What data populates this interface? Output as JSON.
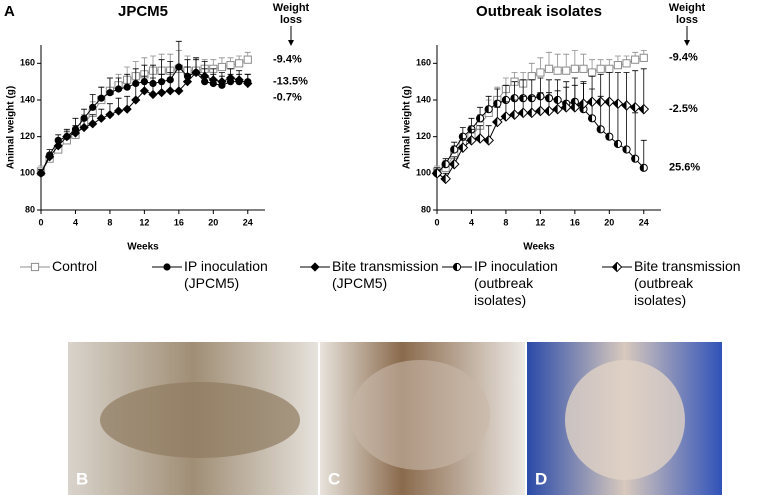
{
  "panel_label": "A",
  "chart_data": [
    {
      "type": "line",
      "title": "JPCM5",
      "xlabel": "Weeks",
      "ylabel": "Animal weight (g)",
      "weight_loss_header": "Weight loss",
      "x": [
        0,
        1,
        2,
        3,
        4,
        5,
        6,
        7,
        8,
        9,
        10,
        11,
        12,
        13,
        14,
        15,
        16,
        17,
        18,
        19,
        20,
        21,
        22,
        23,
        24
      ],
      "xlim": [
        0,
        26
      ],
      "xticks": [
        0,
        4,
        8,
        12,
        16,
        20,
        24
      ],
      "ylim": [
        80,
        170
      ],
      "yticks": [
        80,
        100,
        120,
        140,
        160
      ],
      "series": [
        {
          "name": "Control",
          "color": "#8c8c8c",
          "marker": "square-open",
          "weight_loss": "-9.4%",
          "values": [
            101,
            108,
            113,
            118,
            121,
            127,
            133,
            140,
            145,
            148,
            151,
            153,
            154,
            156,
            156,
            156,
            157,
            156,
            156,
            157,
            157,
            158,
            159,
            160,
            162
          ],
          "errors": [
            3,
            3,
            4,
            4,
            5,
            5,
            6,
            7,
            7,
            6,
            7,
            8,
            9,
            8,
            9,
            9,
            10,
            8,
            7,
            5,
            5,
            5,
            4,
            4,
            4
          ]
        },
        {
          "name": "IP inoculation (JPCM5)",
          "color": "#000000",
          "marker": "circle",
          "weight_loss": "-13.5%",
          "values": [
            100,
            110,
            118,
            120,
            124,
            130,
            136,
            141,
            144,
            146,
            147,
            149,
            150,
            149,
            150,
            151,
            158,
            153,
            155,
            150,
            149,
            148,
            150,
            150,
            150
          ],
          "errors": [
            2,
            3,
            3,
            4,
            6,
            5,
            7,
            6,
            8,
            6,
            7,
            8,
            9,
            10,
            12,
            10,
            14,
            9,
            8,
            7,
            5,
            5,
            4,
            4,
            4
          ]
        },
        {
          "name": "Bite transmission (JPCM5)",
          "color": "#000000",
          "marker": "diamond",
          "weight_loss": "-0.7%",
          "values": [
            100,
            109,
            115,
            120,
            122,
            125,
            127,
            130,
            132,
            134,
            135,
            140,
            145,
            143,
            144,
            145,
            145,
            150,
            155,
            153,
            151,
            150,
            152,
            151,
            149
          ],
          "errors": [
            2,
            2,
            3,
            3,
            4,
            5,
            5,
            5,
            6,
            7,
            7,
            8,
            8,
            9,
            10,
            10,
            12,
            8,
            7,
            8,
            6,
            5,
            5,
            5,
            5
          ]
        }
      ]
    },
    {
      "type": "line",
      "title": "Outbreak isolates",
      "xlabel": "Weeks",
      "ylabel": "Animal weight (g)",
      "weight_loss_header": "Weight loss",
      "x": [
        0,
        1,
        2,
        3,
        4,
        5,
        6,
        7,
        8,
        9,
        10,
        11,
        12,
        13,
        14,
        15,
        16,
        17,
        18,
        19,
        20,
        21,
        22,
        23,
        24
      ],
      "xlim": [
        0,
        26
      ],
      "xticks": [
        0,
        4,
        8,
        12,
        16,
        20,
        24
      ],
      "ylim": [
        80,
        170
      ],
      "yticks": [
        80,
        100,
        120,
        140,
        160
      ],
      "series": [
        {
          "name": "Control",
          "color": "#8c8c8c",
          "marker": "square-open",
          "weight_loss": "-9.4%",
          "values": [
            101,
            103,
            110,
            116,
            120,
            126,
            133,
            140,
            146,
            150,
            149,
            153,
            155,
            157,
            156,
            156,
            157,
            157,
            155,
            157,
            157,
            159,
            160,
            162,
            163
          ],
          "errors": [
            3,
            4,
            5,
            5,
            6,
            6,
            7,
            7,
            6,
            5,
            6,
            7,
            8,
            9,
            9,
            9,
            10,
            8,
            7,
            5,
            5,
            5,
            4,
            4,
            4
          ]
        },
        {
          "name": "IP inoculation (outbreak isolates)",
          "color": "#000000",
          "marker": "half-circle",
          "weight_loss": "25.6%",
          "values": [
            100,
            105,
            113,
            120,
            124,
            130,
            135,
            138,
            140,
            141,
            141,
            141,
            142,
            141,
            140,
            138,
            139,
            135,
            130,
            124,
            120,
            116,
            113,
            108,
            103
          ],
          "errors": [
            2,
            3,
            4,
            5,
            6,
            6,
            7,
            8,
            8,
            9,
            10,
            10,
            10,
            10,
            11,
            12,
            13,
            14,
            16,
            18,
            20,
            22,
            24,
            25,
            15
          ]
        },
        {
          "name": "Bite transmission (outbreak isolates)",
          "color": "#000000",
          "marker": "half-diamond",
          "weight_loss": "-2.5%",
          "values": [
            100,
            97,
            105,
            114,
            118,
            119,
            118,
            128,
            131,
            132,
            133,
            133,
            134,
            134,
            135,
            136,
            136,
            138,
            139,
            139,
            139,
            138,
            137,
            136,
            135
          ],
          "errors": [
            3,
            3,
            4,
            5,
            6,
            7,
            8,
            8,
            8,
            8,
            9,
            9,
            10,
            10,
            10,
            11,
            12,
            12,
            14,
            15,
            16,
            17,
            18,
            20,
            22
          ]
        }
      ]
    }
  ],
  "photos": [
    {
      "label": "B"
    },
    {
      "label": "C"
    },
    {
      "label": "D"
    }
  ]
}
